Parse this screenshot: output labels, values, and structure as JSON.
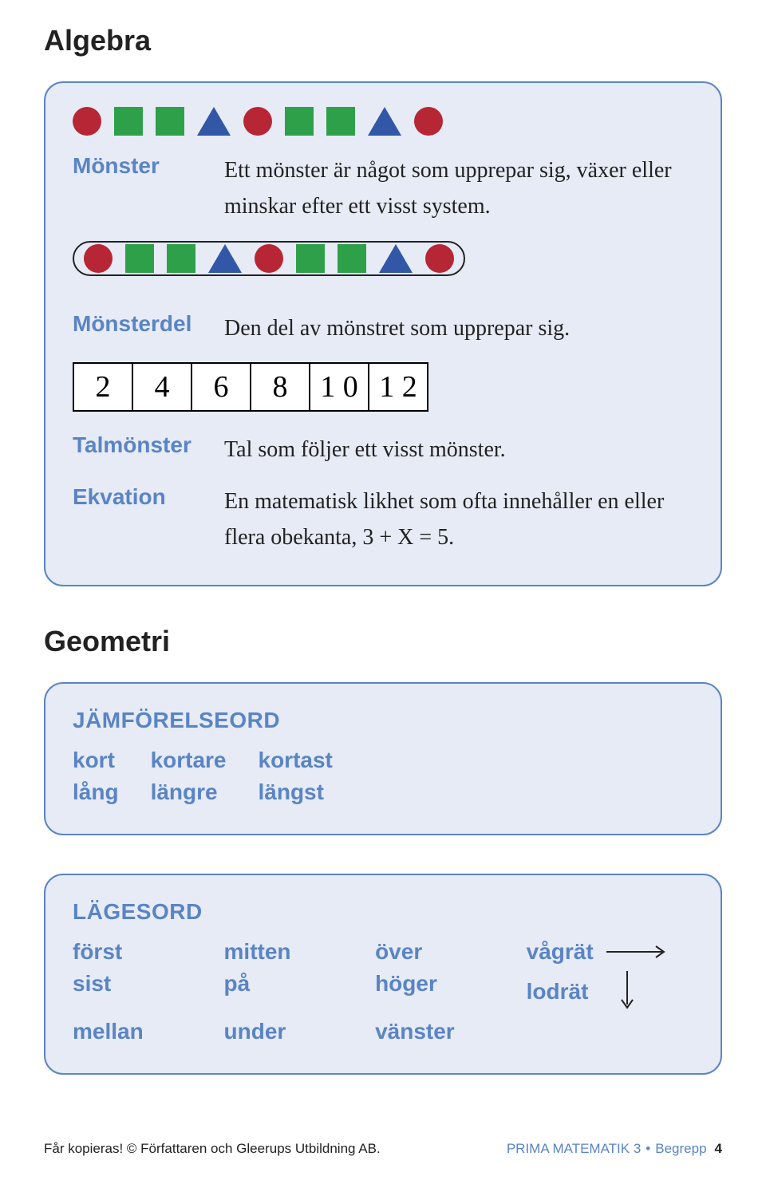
{
  "colors": {
    "panel_border": "#5a84c4",
    "panel_bg": "#e6ebf5",
    "accent": "#5a84c4",
    "text": "#222222",
    "circle": "#b72634",
    "square": "#2fa04a",
    "triangle": "#3257a7",
    "arrow": "#222222"
  },
  "algebra": {
    "heading": "Algebra",
    "pattern_shapes": [
      "circle",
      "square",
      "square",
      "triangle",
      "circle",
      "square",
      "square",
      "triangle",
      "circle"
    ],
    "defs": {
      "monster": {
        "term": "Mönster",
        "text": "Ett mönster är något som upprepar sig, växer eller minskar efter ett visst system."
      },
      "monsterdel": {
        "term": "Mönsterdel",
        "text": "Den del av mönstret som upprepar sig."
      },
      "talmonster": {
        "term": "Talmönster",
        "text": "Tal som följer ett visst mönster."
      },
      "ekvation": {
        "term": "Ekvation",
        "text": "En matematisk likhet som ofta innehåller en eller flera obekanta, 3 + X = 5."
      }
    },
    "number_pattern": [
      "2",
      "4",
      "6",
      "8",
      "1 0",
      "1 2"
    ]
  },
  "geometri": {
    "heading": "Geometri",
    "jamforelse": {
      "title": "JÄMFÖRELSEORD",
      "rows": [
        [
          "kort",
          "kortare",
          "kortast"
        ],
        [
          "lång",
          "längre",
          "längst"
        ]
      ]
    },
    "lagesord": {
      "title": "LÄGESORD",
      "col1": [
        "först",
        "sist",
        "mellan"
      ],
      "col2": [
        "mitten",
        "på",
        "under"
      ],
      "col3": [
        "över",
        "höger",
        "vänster"
      ],
      "col4": [
        "vågrät",
        "lodrät",
        ""
      ]
    }
  },
  "footer": {
    "left": "Får kopieras! © Författaren och Gleerups Utbildning AB.",
    "right_brand": "PRIMA MATEMATIK 3",
    "right_section": "Begrepp",
    "page": "4"
  }
}
